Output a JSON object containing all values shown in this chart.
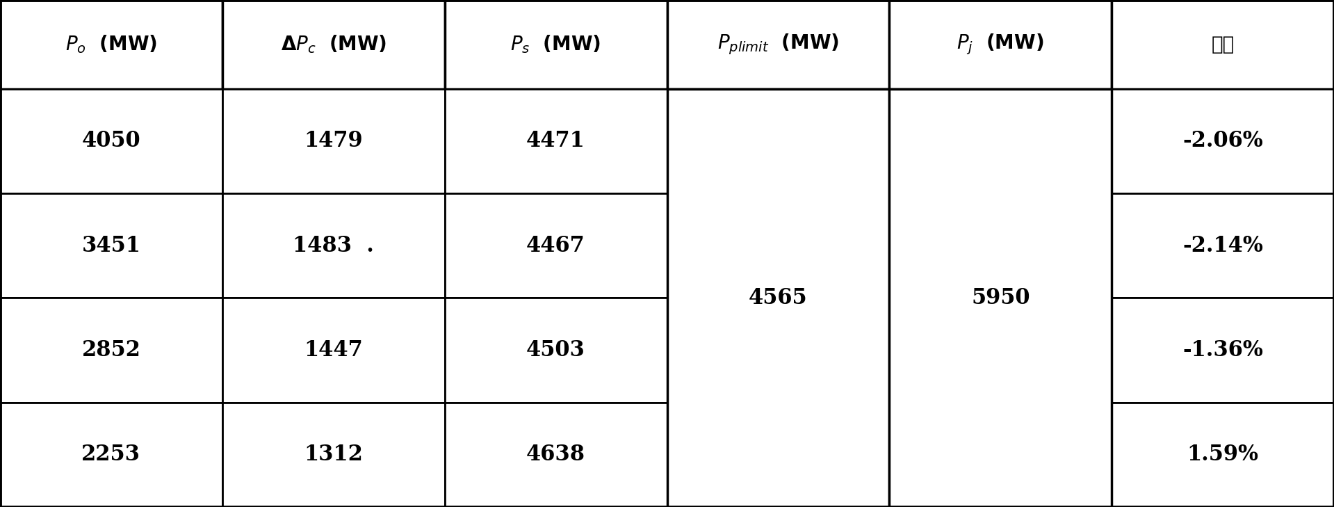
{
  "rows": [
    [
      "4050",
      "1479",
      "4471",
      "",
      "",
      "-2.06%"
    ],
    [
      "3451",
      "1483  .",
      "4467",
      "4565",
      "5950",
      "-2.14%"
    ],
    [
      "2852",
      "1447",
      "4503",
      "",
      "",
      "-1.36%"
    ],
    [
      "2253",
      "1312",
      "4638",
      "",
      "",
      "1.59%"
    ]
  ],
  "bg_color": "#ffffff",
  "border_color": "#000000",
  "text_color": "#000000",
  "font_size_header": 20,
  "font_size_data": 22
}
